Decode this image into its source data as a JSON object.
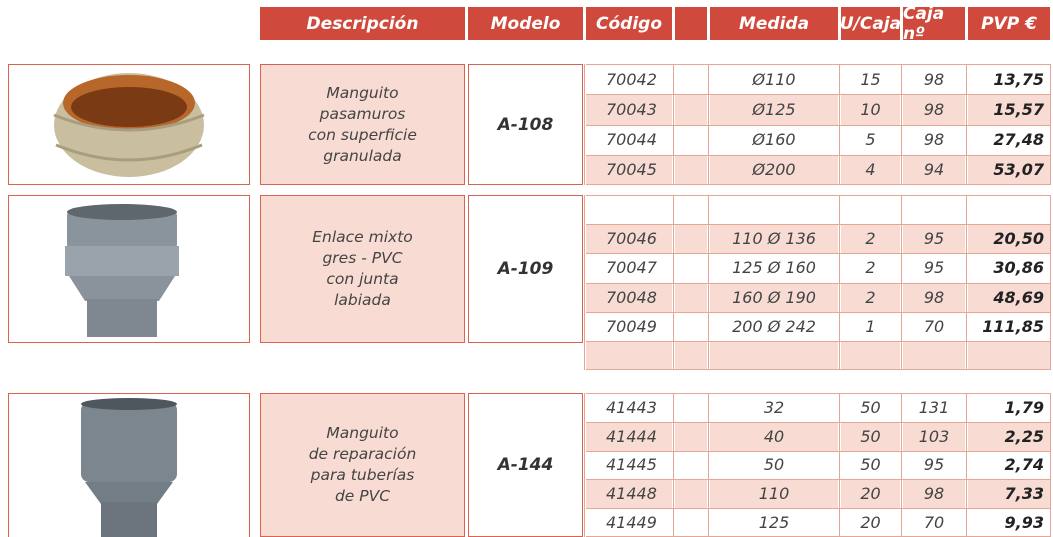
{
  "header": {
    "description": "Descripción",
    "model": "Modelo",
    "code": "Código",
    "size": "Medida",
    "units": "U/Caja",
    "box": "Caja nº",
    "price": "PVP €"
  },
  "groups": [
    {
      "description": [
        "Manguito",
        "pasamuros",
        "con superficie",
        "granulada"
      ],
      "model": "A-108",
      "rows": [
        {
          "code": "70042",
          "size": "Ø110",
          "units": "15",
          "box": "98",
          "price": "13,75"
        },
        {
          "code": "70043",
          "size": "Ø125",
          "units": "10",
          "box": "98",
          "price": "15,57"
        },
        {
          "code": "70044",
          "size": "Ø160",
          "units": "5",
          "box": "98",
          "price": "27,48"
        },
        {
          "code": "70045",
          "size": "Ø200",
          "units": "4",
          "box": "94",
          "price": "53,07"
        }
      ]
    },
    {
      "description": [
        "Enlace mixto",
        "gres - PVC",
        "con junta",
        "labiada"
      ],
      "model": "A-109",
      "rows": [
        {
          "code": "70046",
          "size": "110 Ø 136",
          "units": "2",
          "box": "95",
          "price": "20,50"
        },
        {
          "code": "70047",
          "size": "125 Ø 160",
          "units": "2",
          "box": "95",
          "price": "30,86"
        },
        {
          "code": "70048",
          "size": "160 Ø 190",
          "units": "2",
          "box": "98",
          "price": "48,69"
        },
        {
          "code": "70049",
          "size": "200 Ø 242",
          "units": "1",
          "box": "70",
          "price": "111,85"
        }
      ]
    },
    {
      "description": [
        "Manguito",
        "de reparación",
        "para tuberías",
        "de PVC"
      ],
      "model": "A-144",
      "rows": [
        {
          "code": "41443",
          "size": "32",
          "units": "50",
          "box": "131",
          "price": "1,79"
        },
        {
          "code": "41444",
          "size": "40",
          "units": "50",
          "box": "103",
          "price": "2,25"
        },
        {
          "code": "41445",
          "size": "50",
          "units": "50",
          "box": "95",
          "price": "2,74"
        },
        {
          "code": "41448",
          "size": "110",
          "units": "20",
          "box": "98",
          "price": "7,33"
        },
        {
          "code": "41449",
          "size": "125",
          "units": "20",
          "box": "70",
          "price": "9,93"
        }
      ]
    }
  ]
}
